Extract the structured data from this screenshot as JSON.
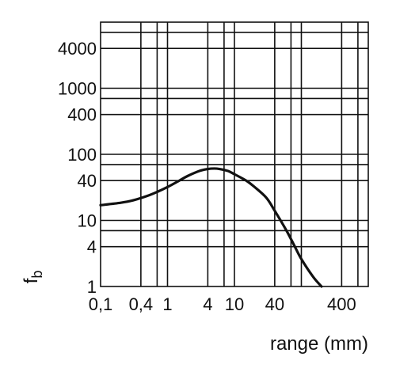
{
  "chart_data": {
    "type": "line",
    "title": "",
    "xlabel": "range (mm)",
    "ylabel": "f",
    "ylabel_subscript": "b",
    "x_scale": "log",
    "y_scale": "log",
    "xlim": [
      0.1,
      1000
    ],
    "ylim": [
      1,
      10000
    ],
    "grid": true,
    "x_grid_lines": [
      0.4,
      0.7,
      1,
      4,
      7,
      10,
      40,
      70,
      100,
      400,
      700
    ],
    "y_grid_lines": [
      4,
      7,
      10,
      40,
      70,
      100,
      400,
      700,
      1000,
      4000,
      7000
    ],
    "x_ticks": [
      {
        "value": 0.1,
        "label": "0,1"
      },
      {
        "value": 0.4,
        "label": "0,4"
      },
      {
        "value": 1,
        "label": "1"
      },
      {
        "value": 4,
        "label": "4"
      },
      {
        "value": 10,
        "label": "10"
      },
      {
        "value": 40,
        "label": "40"
      },
      {
        "value": 400,
        "label": "400"
      }
    ],
    "y_ticks": [
      {
        "value": 1,
        "label": "1"
      },
      {
        "value": 4,
        "label": "4"
      },
      {
        "value": 10,
        "label": "10"
      },
      {
        "value": 40,
        "label": "40"
      },
      {
        "value": 100,
        "label": "100"
      },
      {
        "value": 400,
        "label": "400"
      },
      {
        "value": 1000,
        "label": "1000"
      },
      {
        "value": 4000,
        "label": "4000"
      }
    ],
    "series": [
      {
        "x": [
          0.1,
          0.2,
          0.3,
          0.5,
          0.7,
          1,
          1.5,
          2,
          3,
          4,
          5,
          6,
          8,
          10,
          15,
          20,
          30,
          40,
          60,
          80,
          100,
          150,
          200
        ],
        "y": [
          17,
          18.5,
          20,
          23.5,
          27,
          32,
          40,
          47,
          56,
          60,
          61,
          60,
          56,
          50,
          40,
          32,
          22,
          14,
          7,
          4,
          2.6,
          1.4,
          1
        ]
      }
    ]
  }
}
